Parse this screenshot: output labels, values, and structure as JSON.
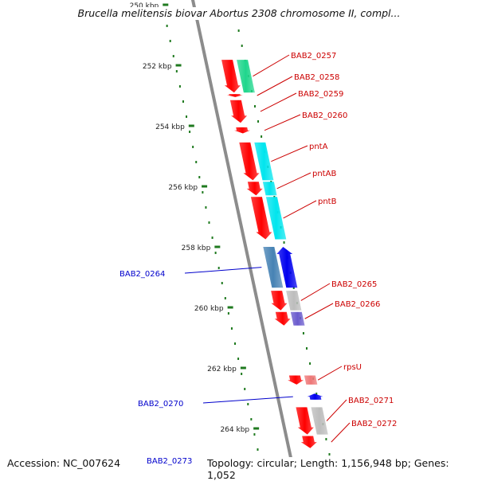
{
  "title": "Brucella melitensis biovar Abortus 2308 chromosome II, compl...",
  "footer": {
    "accession": "Accession: NC_007624",
    "summary": "Topology: circular; Length: 1,156,948 bp; Genes: 1,052"
  },
  "ruler": {
    "unit_suffix": "kbp",
    "labels": [
      {
        "text": "250 kbp",
        "kbp": 250
      },
      {
        "text": "252 kbp",
        "kbp": 252
      },
      {
        "text": "254 kbp",
        "kbp": 254
      },
      {
        "text": "256 kbp",
        "kbp": 256
      },
      {
        "text": "258 kbp",
        "kbp": 258
      },
      {
        "text": "260 kbp",
        "kbp": 260
      },
      {
        "text": "262 kbp",
        "kbp": 262
      },
      {
        "text": "264 kbp",
        "kbp": 264
      }
    ]
  },
  "colors": {
    "forward_gene": "#ff0000",
    "reverse_gene": "#0000ee",
    "forward_label": "#cc0000",
    "reverse_label": "#0000cc",
    "backbone": "#8c8c8c",
    "tick": "#1f7a1f",
    "cds_green": "#1fd68c",
    "cds_cyan": "#00e5ee",
    "cds_steel": "#4682b4",
    "cds_grey": "#bdbdbd",
    "cds_purple": "#6a5acd",
    "cds_pink": "#ee7777",
    "cds_navy": "#3b3b8f"
  },
  "genes": [
    {
      "label": "BAB2_0257",
      "strand": "forward",
      "start_kbp": 251.82,
      "end_kbp": 252.9
    },
    {
      "label": "BAB2_0258",
      "strand": "forward",
      "start_kbp": 252.95,
      "end_kbp": 253.05
    },
    {
      "label": "BAB2_0259",
      "strand": "forward",
      "start_kbp": 253.15,
      "end_kbp": 253.9
    },
    {
      "label": "BAB2_0260",
      "strand": "forward",
      "start_kbp": 254.05,
      "end_kbp": 254.25
    },
    {
      "label": "pntA",
      "strand": "forward",
      "start_kbp": 254.55,
      "end_kbp": 255.8
    },
    {
      "label": "pntAB",
      "strand": "forward",
      "start_kbp": 255.85,
      "end_kbp": 256.3
    },
    {
      "label": "pntB",
      "strand": "forward",
      "start_kbp": 256.35,
      "end_kbp": 257.75
    },
    {
      "label": "BAB2_0264",
      "strand": "reverse",
      "start_kbp": 258.0,
      "end_kbp": 259.35
    },
    {
      "label": "BAB2_0265",
      "strand": "forward",
      "start_kbp": 259.45,
      "end_kbp": 260.1
    },
    {
      "label": "BAB2_0266",
      "strand": "forward",
      "start_kbp": 260.15,
      "end_kbp": 260.6
    },
    {
      "label": "rpsU",
      "strand": "forward",
      "start_kbp": 262.25,
      "end_kbp": 262.55
    },
    {
      "label": "BAB2_0270",
      "strand": "reverse",
      "start_kbp": 262.85,
      "end_kbp": 263.05
    },
    {
      "label": "BAB2_0271",
      "strand": "forward",
      "start_kbp": 263.3,
      "end_kbp": 264.2
    },
    {
      "label": "BAB2_0272",
      "strand": "forward",
      "start_kbp": 264.25,
      "end_kbp": 264.65
    },
    {
      "label": "BAB2_0273",
      "strand": "reverse",
      "start_kbp": 265.0,
      "end_kbp": 266.0
    }
  ]
}
